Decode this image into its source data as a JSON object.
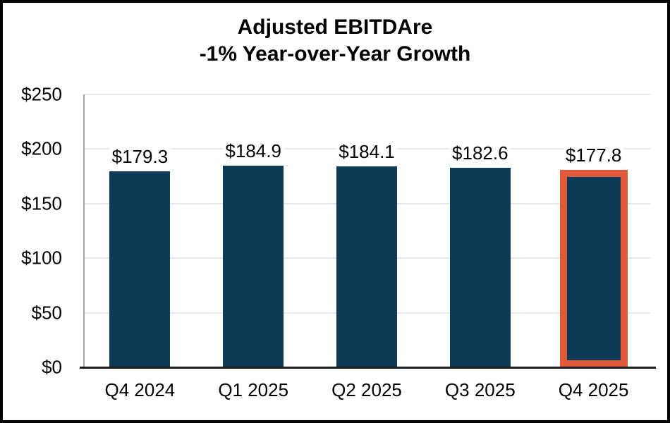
{
  "chart_data": {
    "type": "bar",
    "title": "Adjusted EBITDAre -1% Year-over-Year Growth",
    "title_line1": "Adjusted EBITDAre",
    "title_line2": "-1% Year-over-Year Growth",
    "categories": [
      "Q4 2024",
      "Q1 2025",
      "Q2 2025",
      "Q3 2025",
      "Q4 2025"
    ],
    "values": [
      179.3,
      184.9,
      184.1,
      182.6,
      177.8
    ],
    "value_labels": [
      "$179.3",
      "$184.9",
      "$184.1",
      "$182.6",
      "$177.8"
    ],
    "xlabel": "",
    "ylabel": "",
    "ylim": [
      0,
      250
    ],
    "ytick_step": 50,
    "ytick_labels": [
      "$0",
      "$50",
      "$100",
      "$150",
      "$200",
      "$250"
    ],
    "highlight_index": 4,
    "grid": true,
    "legend": false,
    "colors": {
      "bar": "#0D3A56",
      "highlight_outline": "#E05A3A",
      "gridline": "#E9E9E9",
      "axis_line": "#A3A3A3",
      "baseline": "#1A1A1A",
      "frame_border": "#000000",
      "text": "#000000",
      "background": "#FFFFFF"
    }
  }
}
